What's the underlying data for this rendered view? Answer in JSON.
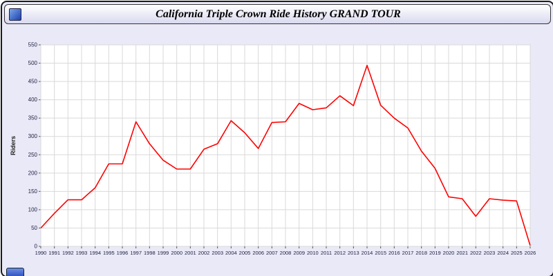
{
  "window": {
    "title": "California Triple Crown Ride History GRAND TOUR"
  },
  "colors": {
    "window_background": "#e9e9f8",
    "plot_background": "#ffffff",
    "grid": "#d9d9d9",
    "axis_tick_text": "#222244",
    "line": "#ff0000"
  },
  "chart_data": {
    "type": "line",
    "title": "California Triple Crown Ride History GRAND TOUR",
    "xlabel": "",
    "ylabel": "Riders",
    "ylim": [
      0,
      550
    ],
    "y_tick_step": 50,
    "grid": true,
    "legend": "none",
    "x": [
      1990,
      1991,
      1992,
      1993,
      1994,
      1995,
      1996,
      1997,
      1998,
      1999,
      2000,
      2001,
      2002,
      2003,
      2004,
      2005,
      2006,
      2007,
      2008,
      2009,
      2010,
      2011,
      2012,
      2013,
      2014,
      2015,
      2016,
      2017,
      2018,
      2019,
      2020,
      2021,
      2022,
      2023,
      2024,
      2025,
      2026
    ],
    "series": [
      {
        "name": "Riders",
        "values": [
          50,
          90,
          127,
          127,
          160,
          225,
          225,
          340,
          280,
          235,
          211,
          211,
          265,
          280,
          343,
          310,
          267,
          338,
          340,
          390,
          373,
          378,
          411,
          384,
          494,
          385,
          350,
          323,
          260,
          213,
          135,
          130,
          82,
          130,
          126,
          124,
          2
        ]
      }
    ]
  }
}
